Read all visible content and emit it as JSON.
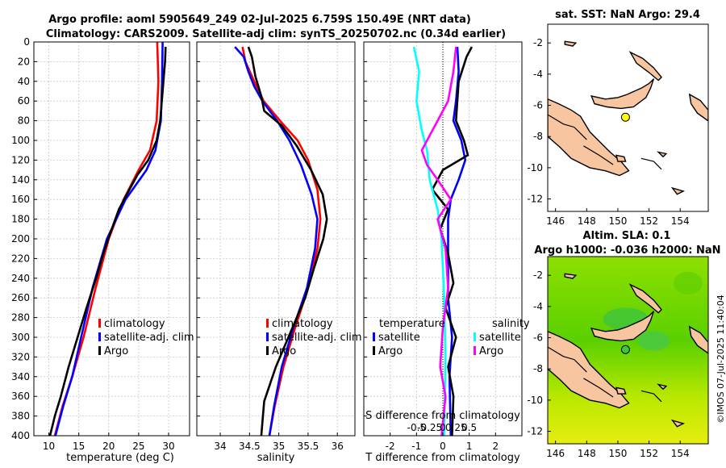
{
  "header": {
    "title_line1": "Argo profile: aoml 5905649_249 02-Jul-2025 6.759S 150.49E (NRT data)",
    "title_line2": "Climatology: CARS2009. Satellite-adj clim: synTS_20250702.nc (0.34d earlier)"
  },
  "colors": {
    "clim": "#ff0000",
    "sat": "#0000ff",
    "argo": "#000000",
    "sal_sat": "#00ffff",
    "sal_argo": "#ff00ff",
    "land": "#f7c59f",
    "grid": "#c8c8c8"
  },
  "depth_ticks": [
    0,
    20,
    40,
    60,
    80,
    100,
    120,
    140,
    160,
    180,
    200,
    220,
    240,
    260,
    280,
    300,
    320,
    340,
    360,
    380,
    400
  ],
  "chart_data": [
    {
      "type": "line",
      "name": "temperature",
      "xlabel": "temperature (deg C)",
      "xlim": [
        7.5,
        33.5
      ],
      "ylim": [
        0,
        400
      ],
      "xticks": [
        10,
        15,
        20,
        25,
        30
      ],
      "legend": {
        "position": "lower-right",
        "entries": [
          "climatology",
          "satellite-adj. clim",
          "Argo"
        ]
      },
      "series": [
        {
          "name": "climatology",
          "color": "#ff0000",
          "points": [
            [
              28.1,
              0
            ],
            [
              28.3,
              40
            ],
            [
              28.0,
              80
            ],
            [
              26.9,
              110
            ],
            [
              25.0,
              130
            ],
            [
              22.5,
              160
            ],
            [
              20.0,
              200
            ],
            [
              17.8,
              250
            ],
            [
              15.8,
              300
            ],
            [
              13.9,
              340
            ],
            [
              12.3,
              370
            ],
            [
              11.0,
              400
            ]
          ]
        },
        {
          "name": "satellite-adj. clim",
          "color": "#0000ff",
          "points": [
            [
              29.0,
              0
            ],
            [
              28.9,
              40
            ],
            [
              28.7,
              80
            ],
            [
              27.8,
              110
            ],
            [
              26.3,
              130
            ],
            [
              22.8,
              160
            ],
            [
              19.7,
              200
            ],
            [
              17.3,
              250
            ],
            [
              15.4,
              300
            ],
            [
              13.9,
              340
            ],
            [
              12.4,
              370
            ],
            [
              11.1,
              400
            ]
          ]
        },
        {
          "name": "Argo",
          "color": "#000000",
          "points": [
            [
              29.5,
              5
            ],
            [
              29.4,
              20
            ],
            [
              29.0,
              50
            ],
            [
              28.6,
              80
            ],
            [
              28.0,
              100
            ],
            [
              26.6,
              120
            ],
            [
              24.8,
              135
            ],
            [
              23.0,
              155
            ],
            [
              21.7,
              170
            ],
            [
              20.2,
              195
            ],
            [
              19.1,
              215
            ],
            [
              17.9,
              240
            ],
            [
              16.3,
              270
            ],
            [
              14.8,
              300
            ],
            [
              13.3,
              330
            ],
            [
              12.0,
              360
            ],
            [
              11.0,
              380
            ],
            [
              10.2,
              400
            ]
          ]
        }
      ]
    },
    {
      "type": "line",
      "name": "salinity",
      "xlabel": "salinity",
      "xlim": [
        33.6,
        36.3
      ],
      "ylim": [
        0,
        400
      ],
      "xticks": [
        34,
        34.5,
        35,
        35.5,
        36
      ],
      "legend": {
        "position": "lower-right",
        "entries": [
          "climatology",
          "satellite-adj. clim",
          "Argo"
        ]
      },
      "series": [
        {
          "name": "climatology",
          "color": "#ff0000",
          "points": [
            [
              34.38,
              5
            ],
            [
              34.43,
              20
            ],
            [
              34.58,
              40
            ],
            [
              34.74,
              60
            ],
            [
              35.02,
              80
            ],
            [
              35.32,
              100
            ],
            [
              35.5,
              120
            ],
            [
              35.66,
              150
            ],
            [
              35.71,
              180
            ],
            [
              35.66,
              210
            ],
            [
              35.5,
              250
            ],
            [
              35.28,
              290
            ],
            [
              35.08,
              330
            ],
            [
              34.93,
              370
            ],
            [
              34.84,
              400
            ]
          ]
        },
        {
          "name": "satellite-adj. clim",
          "color": "#0000ff",
          "points": [
            [
              34.25,
              5
            ],
            [
              34.4,
              15
            ],
            [
              34.48,
              30
            ],
            [
              34.58,
              45
            ],
            [
              34.72,
              60
            ],
            [
              34.97,
              80
            ],
            [
              35.18,
              100
            ],
            [
              35.38,
              125
            ],
            [
              35.56,
              155
            ],
            [
              35.66,
              180
            ],
            [
              35.62,
              210
            ],
            [
              35.48,
              250
            ],
            [
              35.25,
              290
            ],
            [
              35.05,
              330
            ],
            [
              34.92,
              370
            ],
            [
              34.84,
              400
            ]
          ]
        },
        {
          "name": "Argo",
          "color": "#000000",
          "points": [
            [
              34.48,
              5
            ],
            [
              34.54,
              15
            ],
            [
              34.6,
              35
            ],
            [
              34.7,
              55
            ],
            [
              34.75,
              70
            ],
            [
              35.05,
              85
            ],
            [
              35.3,
              105
            ],
            [
              35.55,
              130
            ],
            [
              35.75,
              155
            ],
            [
              35.82,
              180
            ],
            [
              35.76,
              200
            ],
            [
              35.6,
              230
            ],
            [
              35.45,
              260
            ],
            [
              35.2,
              295
            ],
            [
              34.95,
              330
            ],
            [
              34.75,
              365
            ],
            [
              34.7,
              400
            ]
          ]
        }
      ]
    },
    {
      "type": "line",
      "name": "difference",
      "xlabel": "T difference from climatology",
      "xlabel_top": "S difference from climatology",
      "xlim": [
        -3,
        3
      ],
      "ylim": [
        0,
        400
      ],
      "xticks": [
        -2,
        -1,
        0,
        1,
        2
      ],
      "xticks_top": [
        "-0.5",
        "-0.25",
        "0",
        "0.25",
        "0.5"
      ],
      "legend": {
        "position": "lower-center",
        "groups": [
          {
            "title": "temperature",
            "entries": [
              "satellite",
              "Argo"
            ]
          },
          {
            "title": "salinity",
            "entries": [
              "satellite",
              "Argo"
            ]
          }
        ]
      },
      "series": [
        {
          "name": "temperature satellite",
          "color": "#0000ff",
          "points": [
            [
              0.55,
              5
            ],
            [
              0.6,
              30
            ],
            [
              0.5,
              60
            ],
            [
              0.4,
              80
            ],
            [
              0.7,
              100
            ],
            [
              0.85,
              120
            ],
            [
              0.6,
              140
            ],
            [
              0.3,
              160
            ],
            [
              0.2,
              180
            ],
            [
              0.2,
              200
            ],
            [
              0.2,
              260
            ],
            [
              0.35,
              300
            ],
            [
              0.25,
              340
            ],
            [
              0.3,
              400
            ]
          ]
        },
        {
          "name": "temperature Argo",
          "color": "#000000",
          "points": [
            [
              1.1,
              5
            ],
            [
              0.9,
              15
            ],
            [
              0.6,
              40
            ],
            [
              0.5,
              80
            ],
            [
              0.8,
              100
            ],
            [
              0.95,
              115
            ],
            [
              0.0,
              130
            ],
            [
              -0.4,
              150
            ],
            [
              0.2,
              170
            ],
            [
              -0.1,
              190
            ],
            [
              0.2,
              215
            ],
            [
              0.4,
              245
            ],
            [
              0.1,
              270
            ],
            [
              0.5,
              300
            ],
            [
              0.2,
              330
            ],
            [
              0.4,
              360
            ],
            [
              0.35,
              400
            ]
          ]
        },
        {
          "name": "salinity satellite",
          "color": "#00ffff",
          "points": [
            [
              -1.1,
              5
            ],
            [
              -0.9,
              30
            ],
            [
              -1.0,
              60
            ],
            [
              -0.8,
              90
            ],
            [
              -0.6,
              110
            ],
            [
              -0.5,
              140
            ],
            [
              -0.2,
              170
            ],
            [
              -0.05,
              200
            ],
            [
              0.05,
              260
            ],
            [
              0.1,
              320
            ],
            [
              0.05,
              400
            ]
          ]
        },
        {
          "name": "salinity Argo",
          "color": "#ff00ff",
          "points": [
            [
              0.5,
              5
            ],
            [
              0.4,
              30
            ],
            [
              0.2,
              60
            ],
            [
              -0.2,
              80
            ],
            [
              -0.8,
              110
            ],
            [
              -0.6,
              125
            ],
            [
              -0.2,
              140
            ],
            [
              0.3,
              160
            ],
            [
              -0.2,
              180
            ],
            [
              0.1,
              210
            ],
            [
              0.2,
              250
            ],
            [
              0.0,
              290
            ],
            [
              -0.1,
              330
            ],
            [
              0.1,
              360
            ],
            [
              -0.05,
              400
            ]
          ]
        }
      ]
    },
    {
      "type": "map",
      "name": "sst-map",
      "title": "sat. SST: NaN Argo: 29.4",
      "xlim": [
        145.5,
        155.8
      ],
      "ylim": [
        -12.8,
        -0.8
      ],
      "xticks": [
        146,
        148,
        150,
        152,
        154
      ],
      "yticks": [
        -2,
        -4,
        -6,
        -8,
        -10,
        -12
      ],
      "marker": {
        "lon": 150.49,
        "lat": -6.759,
        "color": "#ffff00"
      }
    },
    {
      "type": "map",
      "name": "sla-map",
      "title_line1": "Altim. SLA: 0.1",
      "title_line2": "Argo h1000: -0.036 h2000: NaN",
      "xlim": [
        145.5,
        155.8
      ],
      "ylim": [
        -12.8,
        -0.8
      ],
      "xticks": [
        146,
        148,
        150,
        152,
        154
      ],
      "yticks": [
        -2,
        -4,
        -6,
        -8,
        -10,
        -12
      ],
      "marker": {
        "lon": 150.49,
        "lat": -6.759,
        "color": "#3cc83c"
      }
    }
  ],
  "footer": {
    "stamp": "©IMOS 07-Jul-2025 11:40:04"
  }
}
